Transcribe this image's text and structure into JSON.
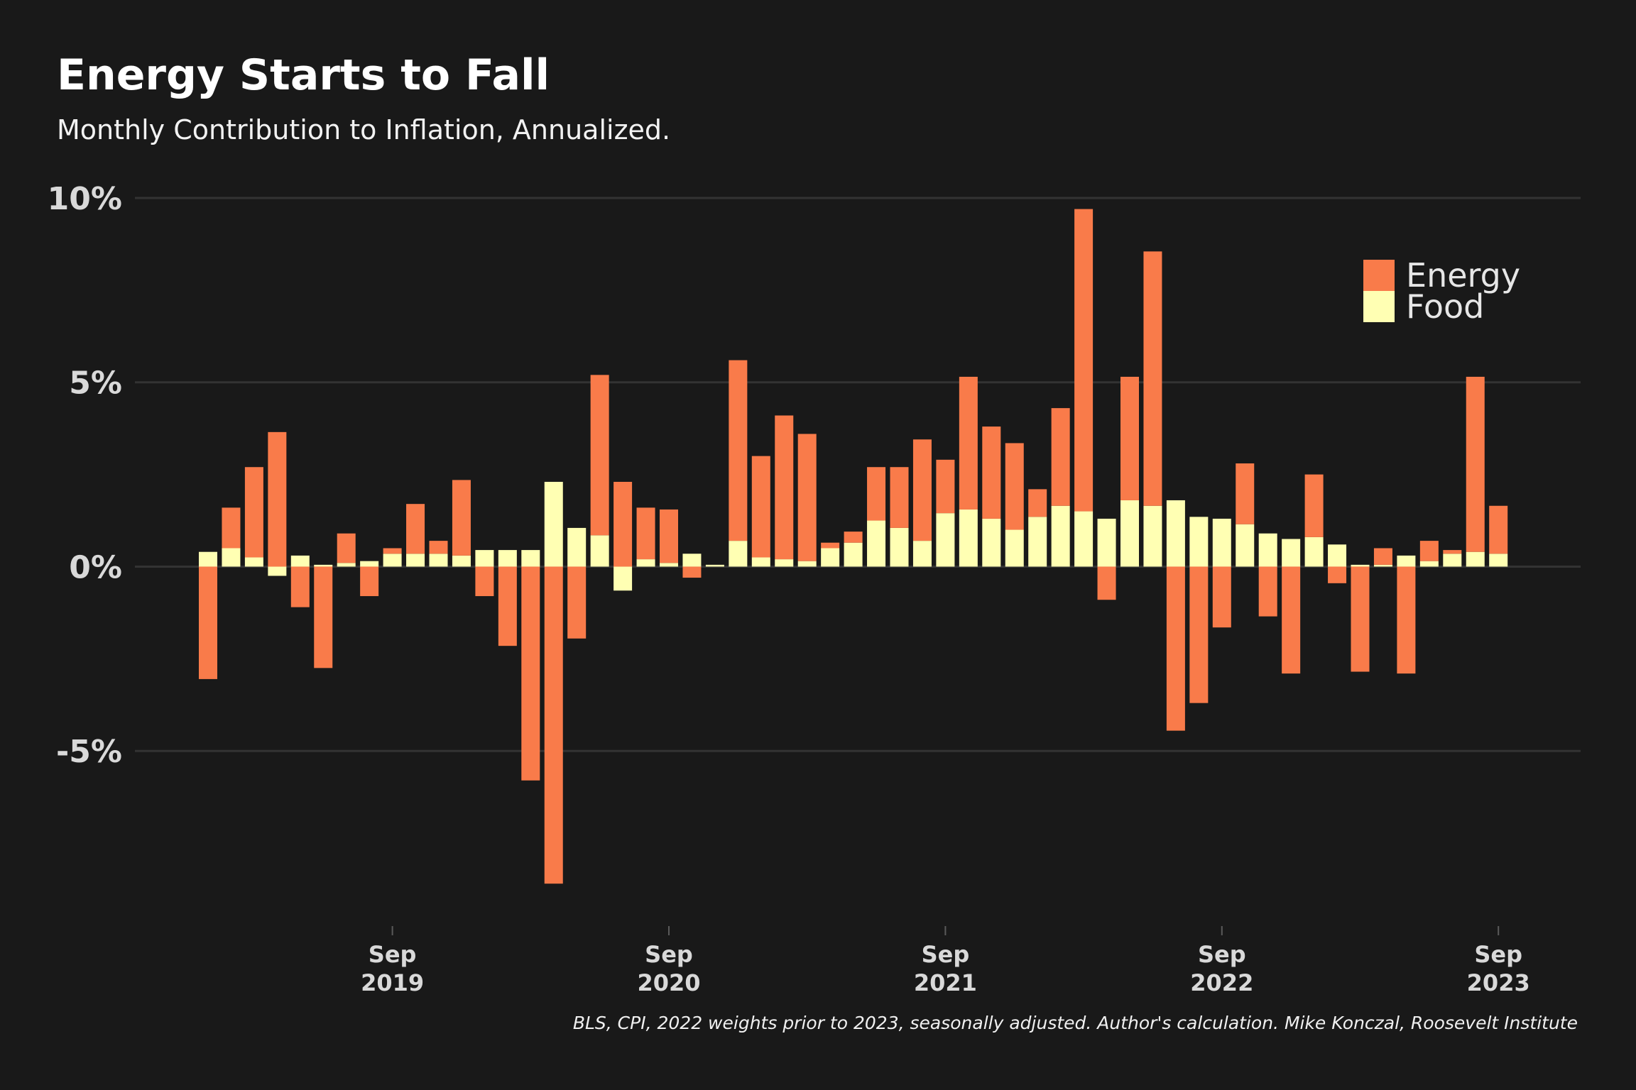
{
  "chart_data": {
    "type": "bar",
    "stacked": true,
    "title": "Energy Starts to Fall",
    "subtitle": "Monthly Contribution to Inflation, Annualized.",
    "caption": "BLS, CPI, 2022 weights prior to 2023, seasonally adjusted. Author's calculation. Mike Konczal, Roosevelt Institute",
    "ylim": [
      -9,
      10
    ],
    "y_ticks": [
      {
        "value": 10,
        "label": "10%"
      },
      {
        "value": 5,
        "label": "5%"
      },
      {
        "value": 0,
        "label": "0%"
      },
      {
        "value": -5,
        "label": "-5%"
      }
    ],
    "x_ticks": [
      {
        "index": 8,
        "month": "Sep",
        "year": "2019"
      },
      {
        "index": 20,
        "month": "Sep",
        "year": "2020"
      },
      {
        "index": 32,
        "month": "Sep",
        "year": "2021"
      },
      {
        "index": 44,
        "month": "Sep",
        "year": "2022"
      },
      {
        "index": 56,
        "month": "Sep",
        "year": "2023"
      }
    ],
    "categories": [
      "2019-01",
      "2019-02",
      "2019-03",
      "2019-04",
      "2019-05",
      "2019-06",
      "2019-07",
      "2019-08",
      "2019-09",
      "2019-10",
      "2019-11",
      "2019-12",
      "2020-01",
      "2020-02",
      "2020-03",
      "2020-04",
      "2020-05",
      "2020-06",
      "2020-07",
      "2020-08",
      "2020-09",
      "2020-10",
      "2020-11",
      "2020-12",
      "2021-01",
      "2021-02",
      "2021-03",
      "2021-04",
      "2021-05",
      "2021-06",
      "2021-07",
      "2021-08",
      "2021-09",
      "2021-10",
      "2021-11",
      "2021-12",
      "2022-01",
      "2022-02",
      "2022-03",
      "2022-04",
      "2022-05",
      "2022-06",
      "2022-07",
      "2022-08",
      "2022-09",
      "2022-10",
      "2022-11",
      "2022-12",
      "2023-01",
      "2023-02",
      "2023-03",
      "2023-04",
      "2023-05",
      "2023-06",
      "2023-07",
      "2023-08",
      "2023-09"
    ],
    "series": [
      {
        "name": "Food",
        "color": "#FFFFB3",
        "values": [
          0.4,
          0.5,
          0.25,
          -0.25,
          0.3,
          0.05,
          0.1,
          0.15,
          0.35,
          0.35,
          0.35,
          0.3,
          0.45,
          0.45,
          0.45,
          2.3,
          1.05,
          0.85,
          -0.65,
          0.2,
          0.1,
          0.35,
          0.05,
          0.7,
          0.25,
          0.2,
          0.15,
          0.5,
          0.65,
          1.25,
          1.05,
          0.7,
          1.45,
          1.55,
          1.3,
          1.0,
          1.35,
          1.65,
          1.5,
          1.3,
          1.8,
          1.65,
          1.8,
          1.35,
          1.3,
          1.15,
          0.9,
          0.75,
          0.8,
          0.6,
          0.05,
          0.05,
          0.3,
          0.15,
          0.35,
          0.4,
          0.35
        ]
      },
      {
        "name": "Energy",
        "color": "#F97B4A",
        "values": [
          -3.05,
          1.1,
          2.45,
          3.65,
          -1.1,
          -2.75,
          0.8,
          -0.8,
          0.15,
          1.35,
          0.35,
          2.05,
          -0.8,
          -2.15,
          -5.8,
          -8.6,
          -1.95,
          4.35,
          2.3,
          1.4,
          1.45,
          -0.3,
          0.0,
          4.9,
          2.75,
          3.9,
          3.45,
          0.15,
          0.3,
          1.45,
          1.65,
          2.75,
          1.45,
          3.6,
          2.5,
          2.35,
          0.75,
          2.65,
          8.2,
          -0.9,
          3.35,
          6.9,
          -4.45,
          -3.7,
          -1.65,
          1.65,
          -1.35,
          -2.9,
          1.7,
          -0.45,
          -2.85,
          0.45,
          -2.9,
          0.55,
          0.1,
          4.75,
          1.3
        ]
      }
    ],
    "legend": {
      "position": "top-right",
      "order": [
        "Energy",
        "Food"
      ]
    },
    "grid": true
  }
}
